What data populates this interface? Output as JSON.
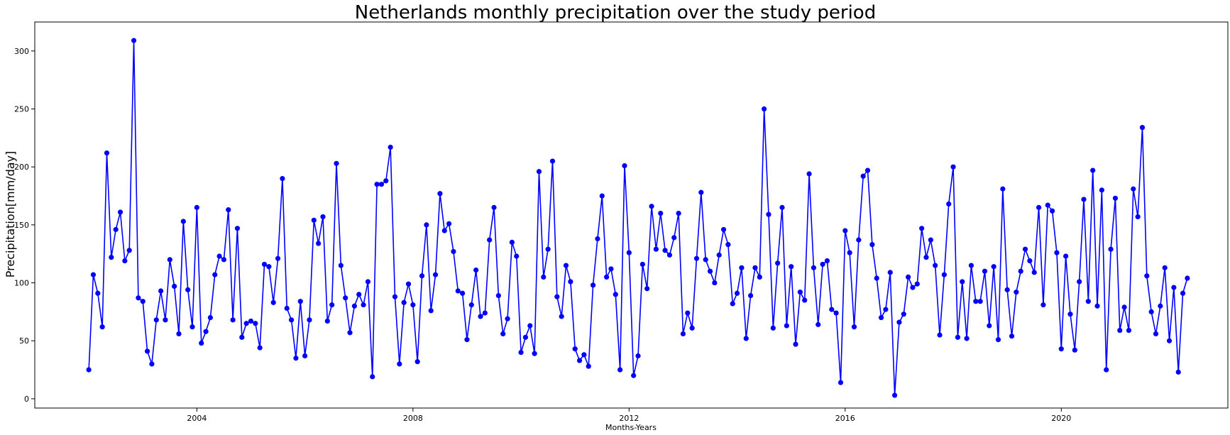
{
  "chart_data": {
    "type": "line",
    "title": "Netherlands monthly precipitation over the study period",
    "xlabel": "Months-Years",
    "ylabel": "Precipitation[mm/day]",
    "x_start": "2002-01",
    "x_tick_labels": [
      "2004",
      "2008",
      "2012",
      "2016",
      "2020"
    ],
    "y_tick_labels": [
      "0",
      "50",
      "100",
      "150",
      "200",
      "250",
      "300"
    ],
    "xlim": [
      "2001-01",
      "2023-02"
    ],
    "ylim": [
      -8,
      325
    ],
    "grid": false,
    "marker": "circle",
    "series": [
      {
        "color": "#0000ff",
        "values": [
          25,
          107,
          91,
          62,
          212,
          122,
          146,
          161,
          119,
          128,
          309,
          87,
          84,
          41,
          30,
          68,
          93,
          68,
          120,
          97,
          56,
          153,
          94,
          62,
          165,
          48,
          58,
          70,
          107,
          123,
          120,
          163,
          68,
          147,
          53,
          65,
          67,
          65,
          44,
          116,
          114,
          83,
          121,
          190,
          78,
          68,
          35,
          84,
          37,
          68,
          154,
          134,
          157,
          67,
          81,
          203,
          115,
          87,
          57,
          80,
          90,
          81,
          101,
          19,
          185,
          185,
          188,
          217,
          88,
          30,
          83,
          99,
          81,
          32,
          106,
          150,
          76,
          107,
          177,
          145,
          151,
          127,
          93,
          91,
          51,
          81,
          111,
          71,
          74,
          137,
          165,
          89,
          56,
          69,
          135,
          123,
          40,
          53,
          63,
          39,
          196,
          105,
          129,
          205,
          88,
          71,
          115,
          101,
          43,
          33,
          38,
          28,
          98,
          138,
          175,
          105,
          112,
          90,
          25,
          201,
          126,
          20,
          37,
          116,
          95,
          166,
          129,
          160,
          128,
          124,
          139,
          160,
          56,
          74,
          61,
          121,
          178,
          120,
          110,
          100,
          124,
          146,
          133,
          82,
          91,
          113,
          52,
          89,
          113,
          105,
          250,
          159,
          61,
          117,
          165,
          63,
          114,
          47,
          92,
          85,
          194,
          113,
          64,
          116,
          119,
          77,
          74,
          14,
          145,
          126,
          62,
          137,
          192,
          197,
          133,
          104,
          70,
          77,
          109,
          3,
          66,
          73,
          105,
          96,
          99,
          147,
          122,
          137,
          115,
          55,
          107,
          168,
          200,
          53,
          101,
          52,
          115,
          84,
          84,
          110,
          63,
          114,
          51,
          181,
          94,
          54,
          92,
          110,
          129,
          119,
          109,
          165,
          81,
          167,
          162,
          126,
          43,
          123,
          73,
          42,
          101,
          172,
          84,
          197,
          80,
          180,
          25,
          129,
          173,
          59,
          79,
          59,
          181,
          157,
          234,
          106,
          75,
          56,
          80,
          113,
          50,
          96,
          23,
          91,
          104
        ]
      }
    ]
  }
}
